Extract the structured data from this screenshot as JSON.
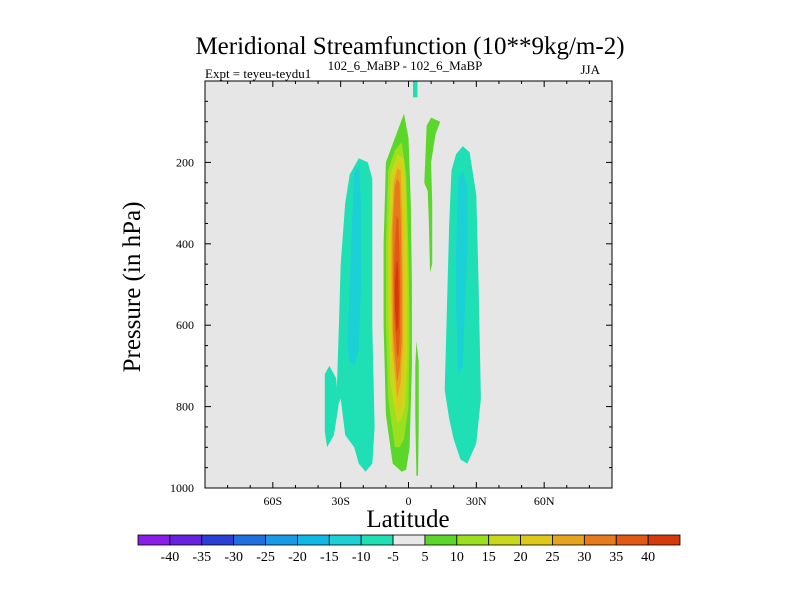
{
  "chart_data": {
    "type": "heatmap",
    "title": "Meridional Streamfunction (10**9kg/m-2)",
    "left_label": "Expt = teyeu-teydu1",
    "center_label": "102_6_MaBP - 102_6_MaBP",
    "right_label": "JJA",
    "xlabel": "Latitude",
    "ylabel": "Pressure (in hPa)",
    "xlim": [
      -90,
      90
    ],
    "ylim": [
      0,
      1000
    ],
    "y_inverted": true,
    "x_ticks": [
      {
        "value": -60,
        "label": "60S"
      },
      {
        "value": -30,
        "label": "30S"
      },
      {
        "value": 0,
        "label": "0"
      },
      {
        "value": 30,
        "label": "30N"
      },
      {
        "value": 60,
        "label": "60N"
      }
    ],
    "y_ticks": [
      {
        "value": 200,
        "label": "200"
      },
      {
        "value": 400,
        "label": "400"
      },
      {
        "value": 600,
        "label": "600"
      },
      {
        "value": 800,
        "label": "800"
      },
      {
        "value": 1000,
        "label": "1000"
      }
    ],
    "background_color": "#e6e6e6",
    "colorbar": {
      "levels": [
        -40,
        -35,
        -30,
        -25,
        -20,
        -15,
        -10,
        -5,
        5,
        10,
        15,
        20,
        25,
        30,
        35,
        40
      ],
      "labels": [
        "-40",
        "-35",
        "-30",
        "-25",
        "-20",
        "-15",
        "-10",
        "-5",
        "5",
        "10",
        "15",
        "20",
        "25",
        "30",
        "35",
        "40"
      ],
      "colors": [
        "#8a1ee8",
        "#6622e0",
        "#2a3fd6",
        "#1e6fe0",
        "#199ae6",
        "#10b8e6",
        "#1cd1d6",
        "#1ee0b4",
        "#e8e8e8",
        "#5bd62a",
        "#9ae01e",
        "#c8d81a",
        "#e0c81a",
        "#e6a31e",
        "#e67a1c",
        "#e05a14",
        "#d63a0c"
      ]
    },
    "regions": [
      {
        "name": "sh-cell-outer",
        "level": -5,
        "color": "#1ee0b4",
        "points": [
          [
            -32,
            810
          ],
          [
            -31,
            640
          ],
          [
            -30,
            450
          ],
          [
            -28,
            300
          ],
          [
            -26,
            230
          ],
          [
            -22,
            190
          ],
          [
            -18,
            200
          ],
          [
            -16,
            240
          ],
          [
            -16,
            400
          ],
          [
            -16,
            600
          ],
          [
            -15,
            850
          ],
          [
            -16,
            940
          ],
          [
            -19,
            960
          ],
          [
            -22,
            940
          ],
          [
            -24,
            900
          ],
          [
            -28,
            870
          ],
          [
            -30,
            780
          ]
        ]
      },
      {
        "name": "sh-cell-lobe",
        "level": -5,
        "color": "#1ee0b4",
        "points": [
          [
            -37,
            720
          ],
          [
            -35,
            700
          ],
          [
            -32,
            730
          ],
          [
            -31,
            800
          ],
          [
            -33,
            870
          ],
          [
            -36,
            900
          ],
          [
            -37,
            860
          ]
        ]
      },
      {
        "name": "sh-cell-core",
        "level": -10,
        "color": "#1cd1d6",
        "points": [
          [
            -27,
            650
          ],
          [
            -26,
            500
          ],
          [
            -25,
            350
          ],
          [
            -24,
            220
          ],
          [
            -22,
            210
          ],
          [
            -21,
            300
          ],
          [
            -21,
            500
          ],
          [
            -22,
            660
          ],
          [
            -24,
            700
          ],
          [
            -26,
            690
          ]
        ]
      },
      {
        "name": "nh-cell-outer",
        "level": -5,
        "color": "#1ee0b4",
        "points": [
          [
            16,
            760
          ],
          [
            17,
            560
          ],
          [
            18,
            350
          ],
          [
            19,
            220
          ],
          [
            21,
            180
          ],
          [
            24,
            160
          ],
          [
            27,
            175
          ],
          [
            30,
            280
          ],
          [
            31,
            500
          ],
          [
            32,
            780
          ],
          [
            30,
            890
          ],
          [
            26,
            940
          ],
          [
            23,
            930
          ],
          [
            20,
            880
          ],
          [
            18,
            830
          ]
        ]
      },
      {
        "name": "nh-cell-core",
        "level": -10,
        "color": "#1cd1d6",
        "points": [
          [
            21,
            560
          ],
          [
            21,
            420
          ],
          [
            22,
            240
          ],
          [
            24,
            220
          ],
          [
            26,
            260
          ],
          [
            26,
            420
          ],
          [
            25,
            560
          ],
          [
            24,
            700
          ],
          [
            22,
            720
          ]
        ]
      },
      {
        "name": "tropical-cap",
        "level": -5,
        "color": "#1ee0b4",
        "points": [
          [
            2,
            0
          ],
          [
            4,
            0
          ],
          [
            4,
            40
          ],
          [
            2,
            40
          ]
        ]
      },
      {
        "name": "hadley-5",
        "level": 5,
        "color": "#5bd62a",
        "points": [
          [
            -7,
            940
          ],
          [
            -10,
            820
          ],
          [
            -11,
            600
          ],
          [
            -11,
            400
          ],
          [
            -10,
            200
          ],
          [
            -6,
            140
          ],
          [
            -2,
            80
          ],
          [
            0,
            140
          ],
          [
            1,
            300
          ],
          [
            1.5,
            500
          ],
          [
            1.5,
            700
          ],
          [
            0.5,
            900
          ],
          [
            -1,
            955
          ],
          [
            -3,
            960
          ],
          [
            -5,
            950
          ]
        ]
      },
      {
        "name": "hadley-10",
        "level": 10,
        "color": "#9ae01e",
        "points": [
          [
            -6,
            900
          ],
          [
            -9,
            780
          ],
          [
            -10,
            600
          ],
          [
            -10,
            400
          ],
          [
            -9,
            220
          ],
          [
            -6,
            170
          ],
          [
            -3,
            150
          ],
          [
            -1,
            230
          ],
          [
            0,
            420
          ],
          [
            0.5,
            600
          ],
          [
            0,
            800
          ],
          [
            -2,
            880
          ],
          [
            -4,
            900
          ]
        ]
      },
      {
        "name": "hadley-15",
        "level": 15,
        "color": "#c8d81a",
        "points": [
          [
            -5,
            840
          ],
          [
            -8,
            740
          ],
          [
            -9,
            580
          ],
          [
            -9,
            400
          ],
          [
            -8,
            230
          ],
          [
            -5,
            180
          ],
          [
            -2,
            190
          ],
          [
            -1,
            300
          ],
          [
            -0.5,
            480
          ],
          [
            -0.5,
            680
          ],
          [
            -1.5,
            800
          ],
          [
            -3,
            830
          ]
        ]
      },
      {
        "name": "hadley-20",
        "level": 20,
        "color": "#e0c81a",
        "points": [
          [
            -5,
            810
          ],
          [
            -7,
            700
          ],
          [
            -8,
            560
          ],
          [
            -8,
            380
          ],
          [
            -7,
            240
          ],
          [
            -5,
            200
          ],
          [
            -3,
            200
          ],
          [
            -2,
            300
          ],
          [
            -1.5,
            480
          ],
          [
            -1.5,
            660
          ],
          [
            -2.5,
            760
          ],
          [
            -3.5,
            800
          ]
        ]
      },
      {
        "name": "hadley-25",
        "level": 25,
        "color": "#e6a31e",
        "points": [
          [
            -5,
            780
          ],
          [
            -7,
            660
          ],
          [
            -7.5,
            520
          ],
          [
            -7.5,
            380
          ],
          [
            -6.5,
            250
          ],
          [
            -5,
            215
          ],
          [
            -3.5,
            220
          ],
          [
            -2.8,
            330
          ],
          [
            -2.5,
            480
          ],
          [
            -2.5,
            650
          ],
          [
            -3.5,
            740
          ]
        ]
      },
      {
        "name": "hadley-30",
        "level": 30,
        "color": "#e67a1c",
        "points": [
          [
            -5,
            740
          ],
          [
            -6.8,
            620
          ],
          [
            -7,
            480
          ],
          [
            -7,
            360
          ],
          [
            -6,
            260
          ],
          [
            -5,
            240
          ],
          [
            -4,
            250
          ],
          [
            -3.3,
            360
          ],
          [
            -3,
            500
          ],
          [
            -3,
            640
          ],
          [
            -4,
            710
          ]
        ]
      },
      {
        "name": "hadley-35",
        "level": 35,
        "color": "#e05a14",
        "points": [
          [
            -5,
            680
          ],
          [
            -6.3,
            580
          ],
          [
            -6.5,
            480
          ],
          [
            -6,
            400
          ],
          [
            -5.3,
            330
          ],
          [
            -4.5,
            340
          ],
          [
            -4,
            420
          ],
          [
            -3.7,
            520
          ],
          [
            -3.8,
            620
          ],
          [
            -4.3,
            670
          ]
        ]
      },
      {
        "name": "hadley-40",
        "level": 40,
        "color": "#d63a0c",
        "points": [
          [
            -5.2,
            620
          ],
          [
            -6,
            560
          ],
          [
            -6,
            500
          ],
          [
            -5.5,
            450
          ],
          [
            -5,
            440
          ],
          [
            -4.5,
            470
          ],
          [
            -4.3,
            540
          ],
          [
            -4.5,
            600
          ]
        ]
      },
      {
        "name": "nh-narrow-5",
        "level": 5,
        "color": "#5bd62a",
        "points": [
          [
            7,
            250
          ],
          [
            7.5,
            180
          ],
          [
            8,
            110
          ],
          [
            10,
            90
          ],
          [
            14,
            100
          ],
          [
            12,
            130
          ],
          [
            10,
            200
          ],
          [
            10.5,
            300
          ],
          [
            10.5,
            450
          ],
          [
            9.5,
            470
          ],
          [
            9,
            350
          ],
          [
            8.5,
            270
          ]
        ]
      },
      {
        "name": "nh-small-5",
        "level": 5,
        "color": "#5bd62a",
        "points": [
          [
            3.5,
            970
          ],
          [
            3,
            820
          ],
          [
            3,
            700
          ],
          [
            3.5,
            640
          ],
          [
            4.5,
            690
          ],
          [
            4.5,
            850
          ],
          [
            4.2,
            970
          ]
        ]
      }
    ]
  }
}
